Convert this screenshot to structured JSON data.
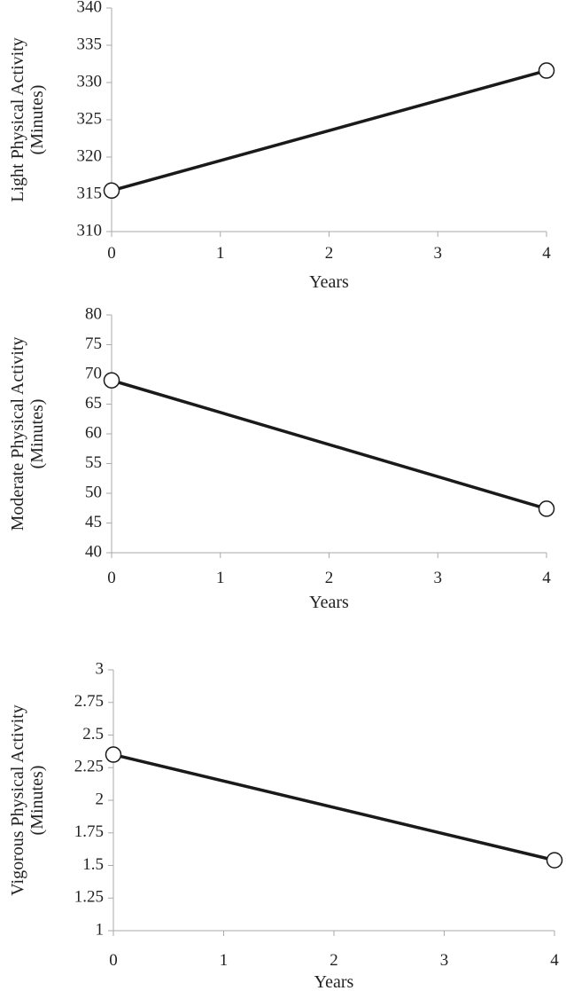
{
  "chart_data": [
    {
      "type": "line",
      "ylabel_line1": "Light Physical Activity",
      "ylabel_line2": "(Minutes)",
      "xlabel": "Years",
      "x": [
        0,
        4
      ],
      "values": [
        315.5,
        331.6
      ],
      "xlim": [
        0,
        4
      ],
      "xticks": [
        0,
        1,
        2,
        3,
        4
      ],
      "xtick_labels": [
        "0",
        "1",
        "2",
        "3",
        "4"
      ],
      "ylim": [
        310,
        340
      ],
      "yticks": [
        310,
        315,
        320,
        325,
        330,
        335,
        340
      ],
      "ytick_labels": [
        "310",
        "315",
        "320",
        "325",
        "330",
        "335",
        "340"
      ],
      "marker": "open-circle",
      "grid": false
    },
    {
      "type": "line",
      "ylabel_line1": "Moderate Physical Activity",
      "ylabel_line2": "(Minutes)",
      "xlabel": "Years",
      "x": [
        0,
        4
      ],
      "values": [
        69.0,
        47.4
      ],
      "xlim": [
        0,
        4
      ],
      "xticks": [
        0,
        1,
        2,
        3,
        4
      ],
      "xtick_labels": [
        "0",
        "1",
        "2",
        "3",
        "4"
      ],
      "ylim": [
        40,
        80
      ],
      "yticks": [
        40,
        45,
        50,
        55,
        60,
        65,
        70,
        75,
        80
      ],
      "ytick_labels": [
        "40",
        "45",
        "50",
        "55",
        "60",
        "65",
        "70",
        "75",
        "80"
      ],
      "marker": "open-circle",
      "grid": false
    },
    {
      "type": "line",
      "ylabel_line1": "Vigorous Physical Activity",
      "ylabel_line2": "(Minutes)",
      "xlabel": "Years",
      "x": [
        0,
        4
      ],
      "values": [
        2.35,
        1.54
      ],
      "xlim": [
        0,
        4
      ],
      "xticks": [
        0,
        1,
        2,
        3,
        4
      ],
      "xtick_labels": [
        "0",
        "1",
        "2",
        "3",
        "4"
      ],
      "ylim": [
        1,
        3
      ],
      "yticks": [
        1,
        1.25,
        1.5,
        1.75,
        2,
        2.25,
        2.5,
        2.75,
        3
      ],
      "ytick_labels": [
        "1",
        "1.25",
        "1.5",
        "1.75",
        "2",
        "2.25",
        "2.5",
        "2.75",
        "3"
      ],
      "marker": "open-circle",
      "grid": false
    }
  ],
  "colors": {
    "line": "#1a1a1a",
    "axis": "#aaaaaa",
    "marker_fill": "#ffffff",
    "text": "#222222"
  }
}
